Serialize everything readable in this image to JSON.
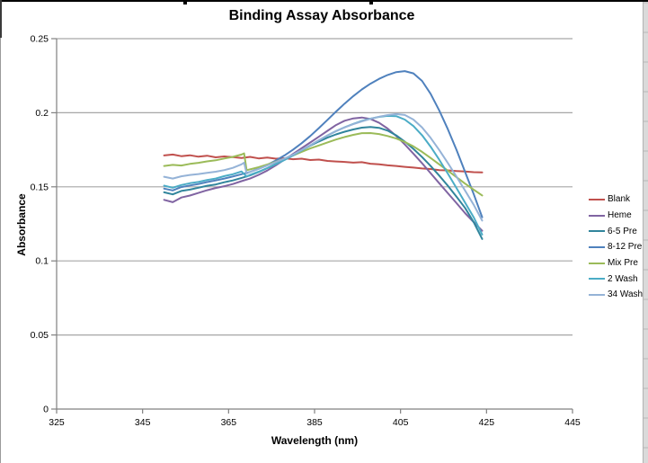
{
  "window": {
    "top_border_color": "#000000",
    "scrollbar_present": true
  },
  "chart_data": {
    "type": "line",
    "title": "Binding Assay Absorbance",
    "xlabel": "Wavelength (nm)",
    "ylabel": "Absorbance",
    "xlim": [
      325,
      445
    ],
    "ylim": [
      0,
      0.25
    ],
    "x_ticks": [
      325,
      345,
      365,
      385,
      405,
      425,
      445
    ],
    "x_tick_labels": [
      "325",
      "345",
      "365",
      "385",
      "405",
      "425",
      "445"
    ],
    "y_ticks": [
      0,
      0.05,
      0.1,
      0.15,
      0.2,
      0.25
    ],
    "y_tick_labels": [
      "0",
      "0.05",
      "0.1",
      "0.15",
      "0.2",
      "0.25"
    ],
    "grid": "horizontal",
    "legend_position": "right",
    "colors": {
      "grid": "#a6a6a6",
      "axis": "#808080",
      "tick_text": "#000000"
    },
    "series": [
      {
        "name": "Blank",
        "color": "#C0504D",
        "points": [
          [
            350,
            0.1712
          ],
          [
            352,
            0.1718
          ],
          [
            354,
            0.1707
          ],
          [
            356,
            0.1713
          ],
          [
            358,
            0.1703
          ],
          [
            360,
            0.171
          ],
          [
            362,
            0.1699
          ],
          [
            364,
            0.1705
          ],
          [
            366,
            0.17
          ],
          [
            368,
            0.1695
          ],
          [
            370,
            0.1702
          ],
          [
            372,
            0.1692
          ],
          [
            374,
            0.1697
          ],
          [
            376,
            0.169
          ],
          [
            378,
            0.1693
          ],
          [
            380,
            0.1686
          ],
          [
            382,
            0.169
          ],
          [
            384,
            0.1681
          ],
          [
            386,
            0.1684
          ],
          [
            388,
            0.1675
          ],
          [
            390,
            0.1671
          ],
          [
            392,
            0.1668
          ],
          [
            394,
            0.1663
          ],
          [
            396,
            0.1666
          ],
          [
            398,
            0.1656
          ],
          [
            400,
            0.1652
          ],
          [
            402,
            0.1645
          ],
          [
            404,
            0.1641
          ],
          [
            406,
            0.1635
          ],
          [
            408,
            0.163
          ],
          [
            410,
            0.1624
          ],
          [
            412,
            0.162
          ],
          [
            414,
            0.1613
          ],
          [
            416,
            0.1611
          ],
          [
            418,
            0.1606
          ],
          [
            420,
            0.1603
          ],
          [
            422,
            0.1599
          ],
          [
            424,
            0.1597
          ]
        ]
      },
      {
        "name": "Heme",
        "color": "#8064A2",
        "points": [
          [
            350,
            0.1412
          ],
          [
            352,
            0.1396
          ],
          [
            354,
            0.1428
          ],
          [
            356,
            0.1441
          ],
          [
            358,
            0.1459
          ],
          [
            360,
            0.1477
          ],
          [
            362,
            0.1492
          ],
          [
            364,
            0.1504
          ],
          [
            366,
            0.1519
          ],
          [
            368,
            0.1538
          ],
          [
            370,
            0.1556
          ],
          [
            372,
            0.1581
          ],
          [
            374,
            0.161
          ],
          [
            376,
            0.1645
          ],
          [
            378,
            0.1683
          ],
          [
            380,
            0.1722
          ],
          [
            382,
            0.1761
          ],
          [
            384,
            0.1799
          ],
          [
            386,
            0.1838
          ],
          [
            388,
            0.1878
          ],
          [
            390,
            0.1917
          ],
          [
            392,
            0.1946
          ],
          [
            394,
            0.1962
          ],
          [
            396,
            0.1968
          ],
          [
            398,
            0.1958
          ],
          [
            400,
            0.1932
          ],
          [
            402,
            0.1893
          ],
          [
            404,
            0.1843
          ],
          [
            406,
            0.1786
          ],
          [
            408,
            0.1724
          ],
          [
            410,
            0.1659
          ],
          [
            412,
            0.1592
          ],
          [
            414,
            0.1524
          ],
          [
            416,
            0.1457
          ],
          [
            418,
            0.139
          ],
          [
            420,
            0.1323
          ],
          [
            422,
            0.1262
          ],
          [
            424,
            0.1203
          ]
        ]
      },
      {
        "name": "6-5 Pre",
        "color": "#31859C",
        "points": [
          [
            350,
            0.1463
          ],
          [
            352,
            0.1449
          ],
          [
            354,
            0.1472
          ],
          [
            356,
            0.1481
          ],
          [
            358,
            0.1494
          ],
          [
            360,
            0.1507
          ],
          [
            362,
            0.1516
          ],
          [
            364,
            0.1531
          ],
          [
            366,
            0.1543
          ],
          [
            368,
            0.156
          ],
          [
            370,
            0.1577
          ],
          [
            372,
            0.16
          ],
          [
            374,
            0.1626
          ],
          [
            376,
            0.1654
          ],
          [
            378,
            0.1684
          ],
          [
            380,
            0.1715
          ],
          [
            382,
            0.1747
          ],
          [
            384,
            0.1778
          ],
          [
            386,
            0.1806
          ],
          [
            388,
            0.1832
          ],
          [
            390,
            0.1854
          ],
          [
            392,
            0.1872
          ],
          [
            394,
            0.1887
          ],
          [
            396,
            0.1899
          ],
          [
            398,
            0.1904
          ],
          [
            400,
            0.1898
          ],
          [
            402,
            0.1879
          ],
          [
            404,
            0.1847
          ],
          [
            406,
            0.1805
          ],
          [
            408,
            0.1756
          ],
          [
            410,
            0.1701
          ],
          [
            412,
            0.1641
          ],
          [
            414,
            0.1576
          ],
          [
            416,
            0.1507
          ],
          [
            418,
            0.1434
          ],
          [
            420,
            0.1358
          ],
          [
            422,
            0.1262
          ],
          [
            424,
            0.1148
          ]
        ]
      },
      {
        "name": "8-12 Pre",
        "color": "#4F81BD",
        "points": [
          [
            350,
            0.1488
          ],
          [
            352,
            0.1476
          ],
          [
            354,
            0.1498
          ],
          [
            356,
            0.1509
          ],
          [
            358,
            0.1519
          ],
          [
            360,
            0.1532
          ],
          [
            362,
            0.1543
          ],
          [
            364,
            0.1556
          ],
          [
            366,
            0.157
          ],
          [
            368,
            0.1585
          ],
          [
            370,
            0.1601
          ],
          [
            372,
            0.1622
          ],
          [
            374,
            0.1648
          ],
          [
            376,
            0.1678
          ],
          [
            378,
            0.1712
          ],
          [
            380,
            0.1751
          ],
          [
            382,
            0.1794
          ],
          [
            384,
            0.1843
          ],
          [
            386,
            0.1896
          ],
          [
            388,
            0.1952
          ],
          [
            390,
            0.2008
          ],
          [
            392,
            0.2062
          ],
          [
            394,
            0.2112
          ],
          [
            396,
            0.2157
          ],
          [
            398,
            0.2196
          ],
          [
            400,
            0.2229
          ],
          [
            402,
            0.2255
          ],
          [
            404,
            0.2274
          ],
          [
            406,
            0.2281
          ],
          [
            408,
            0.2266
          ],
          [
            410,
            0.2215
          ],
          [
            412,
            0.2128
          ],
          [
            414,
            0.2016
          ],
          [
            416,
            0.1889
          ],
          [
            418,
            0.175
          ],
          [
            420,
            0.1602
          ],
          [
            422,
            0.1452
          ],
          [
            424,
            0.1295
          ]
        ]
      },
      {
        "name": "Mix Pre",
        "color": "#9BBB59",
        "points": [
          [
            350,
            0.1641
          ],
          [
            352,
            0.1648
          ],
          [
            354,
            0.1644
          ],
          [
            356,
            0.1655
          ],
          [
            358,
            0.1662
          ],
          [
            360,
            0.1672
          ],
          [
            362,
            0.1679
          ],
          [
            364,
            0.1691
          ],
          [
            366,
            0.1702
          ],
          [
            368,
            0.1718
          ],
          [
            368.6,
            0.1726
          ],
          [
            369.2,
            0.1612
          ],
          [
            370,
            0.1618
          ],
          [
            372,
            0.1632
          ],
          [
            374,
            0.1651
          ],
          [
            376,
            0.1669
          ],
          [
            378,
            0.169
          ],
          [
            380,
            0.1712
          ],
          [
            382,
            0.1736
          ],
          [
            384,
            0.1759
          ],
          [
            386,
            0.1779
          ],
          [
            388,
            0.18
          ],
          [
            390,
            0.1819
          ],
          [
            392,
            0.1836
          ],
          [
            394,
            0.1851
          ],
          [
            396,
            0.1862
          ],
          [
            398,
            0.1863
          ],
          [
            400,
            0.1856
          ],
          [
            402,
            0.1843
          ],
          [
            404,
            0.1826
          ],
          [
            406,
            0.1803
          ],
          [
            408,
            0.1773
          ],
          [
            410,
            0.1736
          ],
          [
            412,
            0.1695
          ],
          [
            414,
            0.1652
          ],
          [
            416,
            0.1609
          ],
          [
            418,
            0.1565
          ],
          [
            420,
            0.1522
          ],
          [
            422,
            0.1481
          ],
          [
            424,
            0.1442
          ]
        ]
      },
      {
        "name": "2 Wash",
        "color": "#4BACC6",
        "points": [
          [
            350,
            0.1508
          ],
          [
            352,
            0.1494
          ],
          [
            354,
            0.1512
          ],
          [
            356,
            0.1524
          ],
          [
            358,
            0.1533
          ],
          [
            360,
            0.1546
          ],
          [
            362,
            0.1556
          ],
          [
            364,
            0.1572
          ],
          [
            366,
            0.1585
          ],
          [
            368,
            0.1604
          ],
          [
            369.2,
            0.1569
          ],
          [
            370,
            0.1581
          ],
          [
            372,
            0.1602
          ],
          [
            374,
            0.1626
          ],
          [
            376,
            0.1653
          ],
          [
            378,
            0.1681
          ],
          [
            380,
            0.1712
          ],
          [
            382,
            0.1745
          ],
          [
            384,
            0.178
          ],
          [
            386,
            0.1814
          ],
          [
            388,
            0.1847
          ],
          [
            390,
            0.1876
          ],
          [
            392,
            0.1902
          ],
          [
            394,
            0.1925
          ],
          [
            396,
            0.1945
          ],
          [
            398,
            0.196
          ],
          [
            400,
            0.1972
          ],
          [
            402,
            0.1979
          ],
          [
            404,
            0.1977
          ],
          [
            406,
            0.1954
          ],
          [
            408,
            0.191
          ],
          [
            410,
            0.1848
          ],
          [
            412,
            0.1771
          ],
          [
            414,
            0.1683
          ],
          [
            416,
            0.1589
          ],
          [
            418,
            0.1492
          ],
          [
            420,
            0.1394
          ],
          [
            422,
            0.1295
          ],
          [
            424,
            0.1178
          ]
        ]
      },
      {
        "name": "34 Wash",
        "color": "#95B3D7",
        "points": [
          [
            350,
            0.1568
          ],
          [
            352,
            0.1556
          ],
          [
            354,
            0.1571
          ],
          [
            356,
            0.158
          ],
          [
            358,
            0.1586
          ],
          [
            360,
            0.1594
          ],
          [
            362,
            0.1602
          ],
          [
            364,
            0.1613
          ],
          [
            366,
            0.1628
          ],
          [
            368,
            0.1652
          ],
          [
            368.6,
            0.1663
          ],
          [
            369.2,
            0.1589
          ],
          [
            370,
            0.1601
          ],
          [
            372,
            0.1621
          ],
          [
            374,
            0.1644
          ],
          [
            376,
            0.1667
          ],
          [
            378,
            0.1691
          ],
          [
            380,
            0.1717
          ],
          [
            382,
            0.1748
          ],
          [
            384,
            0.1781
          ],
          [
            386,
            0.1815
          ],
          [
            388,
            0.1847
          ],
          [
            390,
            0.1876
          ],
          [
            392,
            0.1901
          ],
          [
            394,
            0.1923
          ],
          [
            396,
            0.1942
          ],
          [
            398,
            0.1959
          ],
          [
            400,
            0.1973
          ],
          [
            402,
            0.1984
          ],
          [
            404,
            0.1991
          ],
          [
            406,
            0.1985
          ],
          [
            408,
            0.1954
          ],
          [
            410,
            0.1901
          ],
          [
            412,
            0.1831
          ],
          [
            414,
            0.1749
          ],
          [
            416,
            0.1661
          ],
          [
            418,
            0.1569
          ],
          [
            420,
            0.1475
          ],
          [
            422,
            0.1379
          ],
          [
            424,
            0.1272
          ]
        ]
      }
    ]
  }
}
